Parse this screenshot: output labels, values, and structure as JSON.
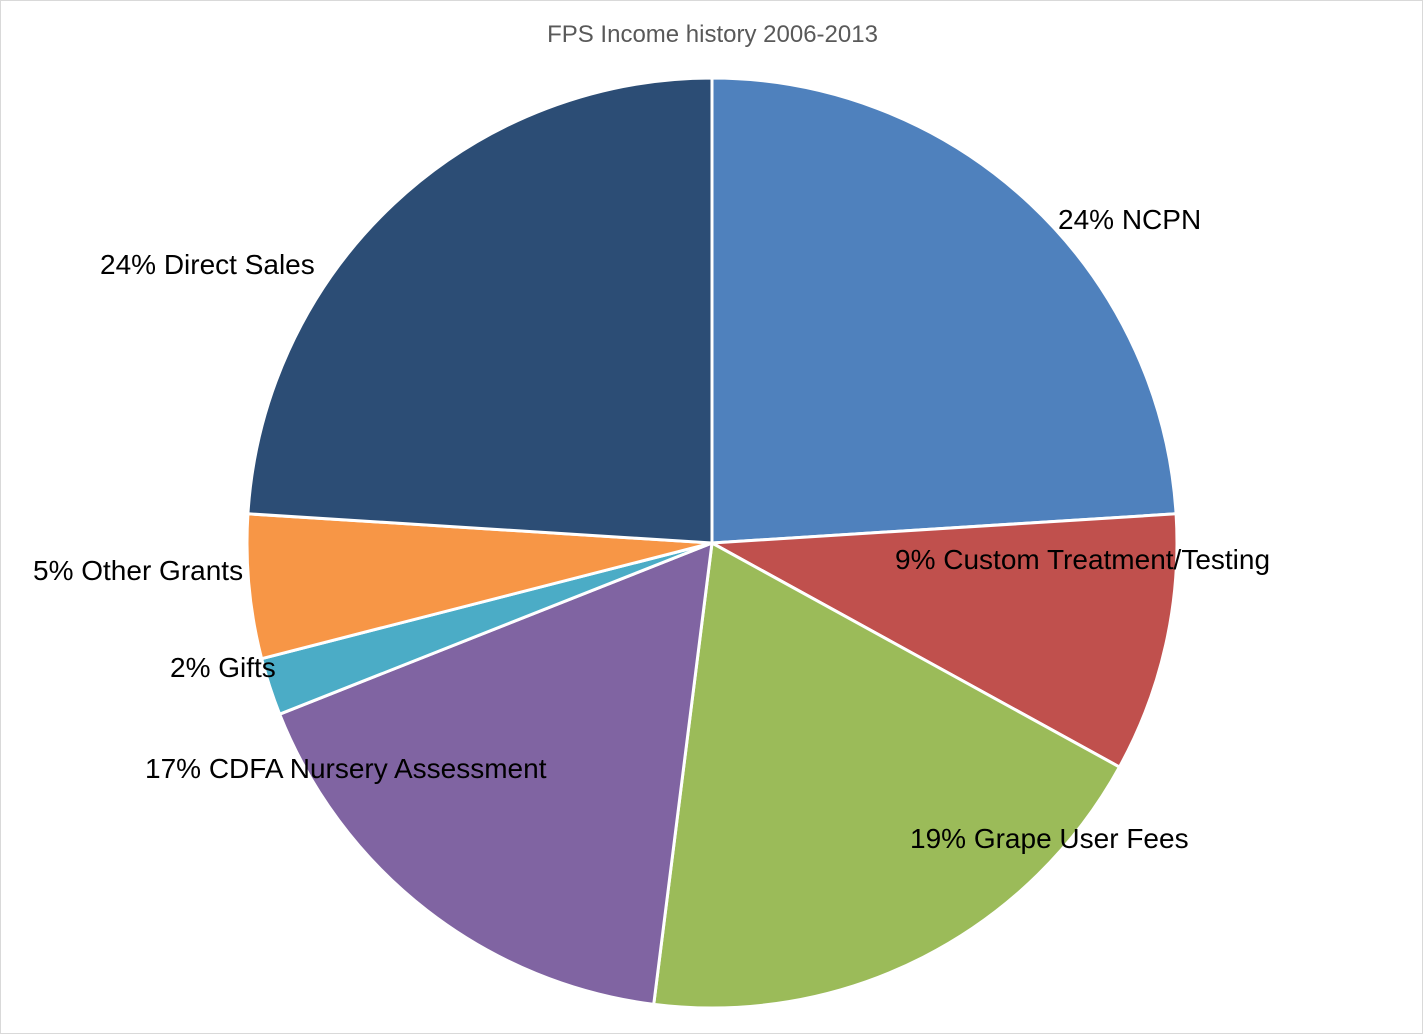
{
  "chart_data": {
    "type": "pie",
    "title": "FPS Income history 2006-2013",
    "start_angle_deg": 0,
    "direction": "clockwise",
    "slices": [
      {
        "category": "NCPN",
        "label": "24% NCPN",
        "value": 24,
        "color": "#4F81BD"
      },
      {
        "category": "Custom Treatment/Testing",
        "label": "9% Custom Treatment/Testing",
        "value": 9,
        "color": "#C0504D"
      },
      {
        "category": "Grape User Fees",
        "label": "19% Grape User Fees",
        "value": 19,
        "color": "#9BBB59"
      },
      {
        "category": "CDFA Nursery Assessment",
        "label": "17%  CDFA Nursery Assessment",
        "value": 17,
        "color": "#8064A2"
      },
      {
        "category": "Gifts",
        "label": "2% Gifts",
        "value": 2,
        "color": "#4BACC6"
      },
      {
        "category": "Other Grants",
        "label": "5% Other Grants",
        "value": 5,
        "color": "#F79646"
      },
      {
        "category": "Direct Sales",
        "label": "24% Direct Sales",
        "value": 24,
        "color": "#2C4D75"
      }
    ]
  }
}
